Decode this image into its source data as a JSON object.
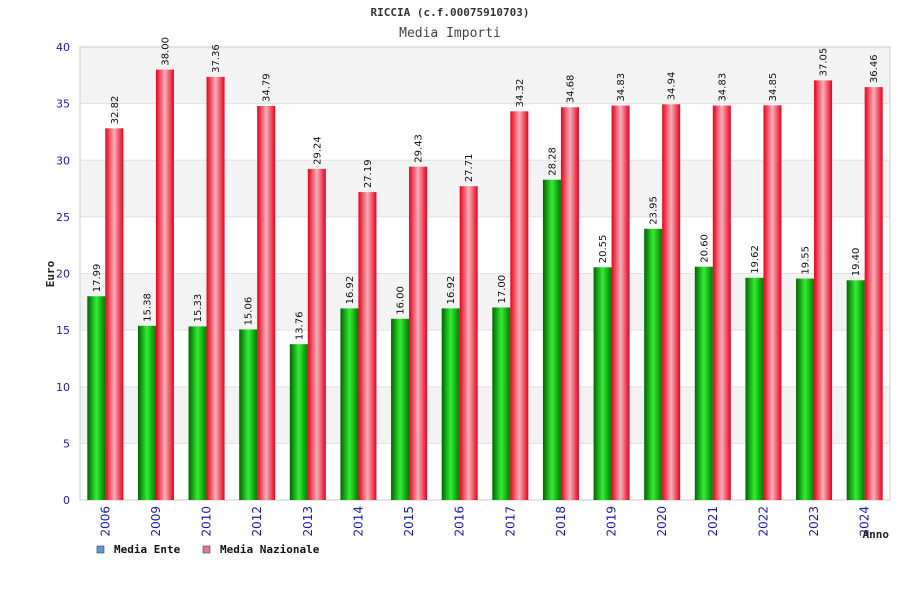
{
  "chart_data": {
    "type": "bar",
    "title": "RICCIA (c.f.00075910703)",
    "subtitle": "Media Importi",
    "ylabel": "Euro",
    "xlabel": "Anno",
    "ylim": [
      0,
      40
    ],
    "yticks": [
      0,
      5,
      10,
      15,
      20,
      25,
      30,
      35,
      40
    ],
    "grid": true,
    "legend_position": "bottom-left",
    "categories": [
      "2006",
      "2009",
      "2010",
      "2012",
      "2013",
      "2014",
      "2015",
      "2016",
      "2017",
      "2018",
      "2019",
      "2020",
      "2021",
      "2022",
      "2023",
      "2024"
    ],
    "series": [
      {
        "name": "Media Ente",
        "legend_color": "#5b9bd5",
        "bar_color": "#00a000",
        "values": [
          17.99,
          15.38,
          15.33,
          15.06,
          13.76,
          16.92,
          16.0,
          16.92,
          17.0,
          28.28,
          20.55,
          23.95,
          20.6,
          19.62,
          19.55,
          19.4
        ],
        "labels": [
          "17.99",
          "15.38",
          "15.33",
          "15.06",
          "13.76",
          "16.92",
          "16.00",
          "16.92",
          "17.00",
          "28.28",
          "20.55",
          "23.95",
          "20.60",
          "19.62",
          "19.55",
          "19.40"
        ]
      },
      {
        "name": "Media Nazionale",
        "legend_color": "#e07a9a",
        "bar_color": "#e8001c",
        "values": [
          32.82,
          38.0,
          37.36,
          34.79,
          29.24,
          27.19,
          29.43,
          27.71,
          34.32,
          34.68,
          34.83,
          34.94,
          34.83,
          34.85,
          37.05,
          36.46
        ],
        "labels": [
          "32.82",
          "38.00",
          "37.36",
          "34.79",
          "29.24",
          "27.19",
          "29.43",
          "27.71",
          "34.32",
          "34.68",
          "34.83",
          "34.94",
          "34.83",
          "34.85",
          "37.05",
          "36.46"
        ]
      }
    ]
  }
}
